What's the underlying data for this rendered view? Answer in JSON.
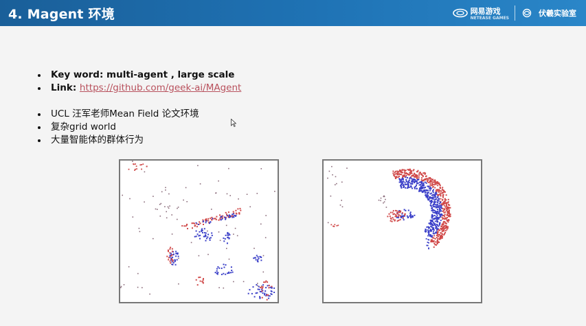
{
  "slide": {
    "title": "4. Magent 环境"
  },
  "logos": {
    "netease": "网易游戏",
    "netease_sub": "NETEASE GAMES",
    "fuxi": "伏羲实验室"
  },
  "bullets_top": [
    {
      "label": "Key word: multi-agent , large scale",
      "bold": true
    },
    {
      "label": "Link: ",
      "link": "https://github.com/geek-ai/MAgent"
    }
  ],
  "bullets_bottom": [
    "UCL 汪军老师Mean Field 论文环境",
    "复杂grid world",
    "大量智能体的群体行为"
  ],
  "colors": {
    "header": "#1f73b5",
    "red_agents": "#d04848",
    "blue_agents": "#3a3fc8",
    "link": "#b8505c"
  }
}
